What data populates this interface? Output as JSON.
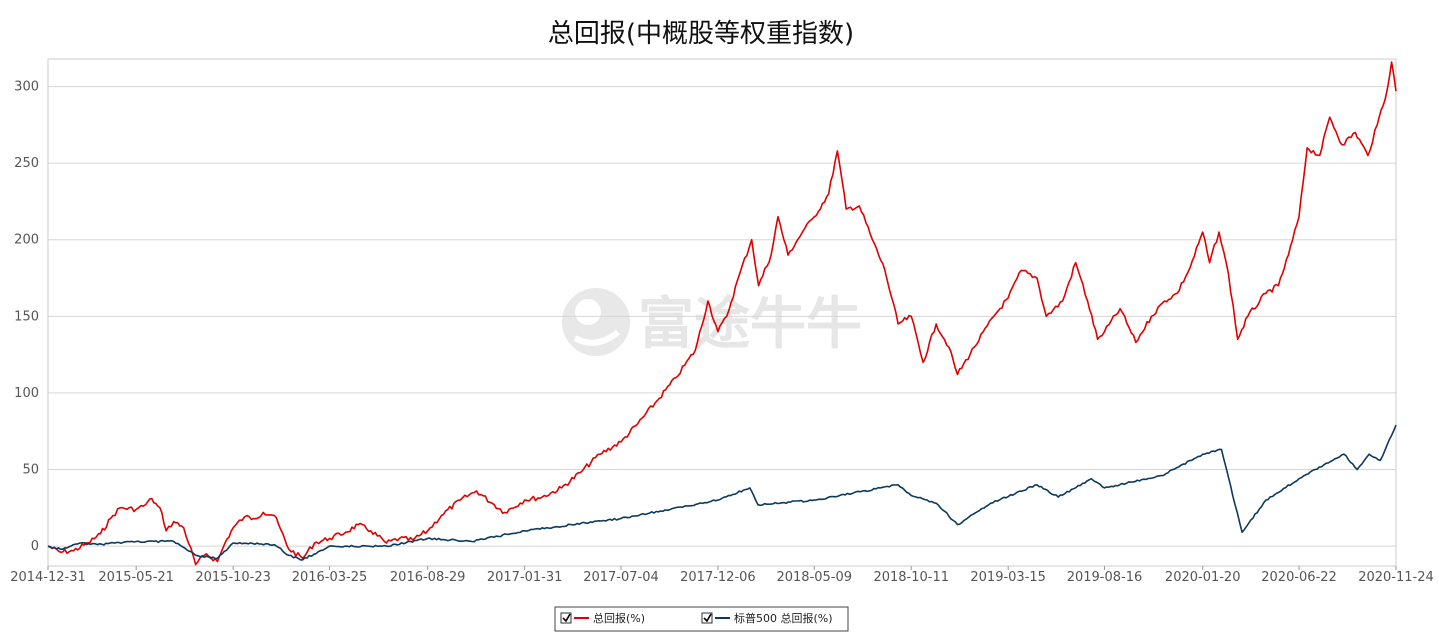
{
  "chart_data": {
    "type": "line",
    "title": "总回报(中概股等权重指数)",
    "xlabel": "",
    "ylabel": "",
    "x": [
      "2014-12-31",
      "2015-05-21",
      "2015-10-23",
      "2016-03-25",
      "2016-08-29",
      "2017-01-31",
      "2017-07-04",
      "2017-12-06",
      "2018-05-09",
      "2018-10-11",
      "2019-03-15",
      "2019-08-16",
      "2020-01-20",
      "2020-06-22",
      "2020-11-24"
    ],
    "x_tick_labels": [
      "2014-12-31",
      "2015-05-21",
      "2015-10-23",
      "2016-03-25",
      "2016-08-29",
      "2017-01-31",
      "2017-07-04",
      "2017-12-06",
      "2018-05-09",
      "2018-10-11",
      "2019-03-15",
      "2019-08-16",
      "2020-01-20",
      "2020-06-22",
      "2020-11-24"
    ],
    "y_ticks": [
      "0",
      "50",
      "100",
      "150",
      "200",
      "250",
      "300"
    ],
    "ylim": [
      -13,
      318
    ],
    "grid": "horizontal",
    "legend_position": "bottom-center",
    "series": [
      {
        "name": "总回报(%)",
        "color": "#e00000",
        "points": [
          [
            "2014-12-31",
            0
          ],
          [
            "2015-01-20",
            -4
          ],
          [
            "2015-02-10",
            -3
          ],
          [
            "2015-03-05",
            2
          ],
          [
            "2015-03-25",
            8
          ],
          [
            "2015-04-10",
            18
          ],
          [
            "2015-04-25",
            25
          ],
          [
            "2015-05-21",
            24
          ],
          [
            "2015-06-05",
            27
          ],
          [
            "2015-06-15",
            31
          ],
          [
            "2015-07-01",
            22
          ],
          [
            "2015-07-08",
            10
          ],
          [
            "2015-07-20",
            16
          ],
          [
            "2015-08-05",
            12
          ],
          [
            "2015-08-24",
            -12
          ],
          [
            "2015-09-10",
            -5
          ],
          [
            "2015-09-28",
            -10
          ],
          [
            "2015-10-10",
            2
          ],
          [
            "2015-10-23",
            12
          ],
          [
            "2015-11-10",
            19
          ],
          [
            "2015-11-25",
            18
          ],
          [
            "2015-12-10",
            22
          ],
          [
            "2015-12-28",
            20
          ],
          [
            "2016-01-20",
            -2
          ],
          [
            "2016-02-11",
            -8
          ],
          [
            "2016-03-01",
            2
          ],
          [
            "2016-03-25",
            5
          ],
          [
            "2016-04-20",
            9
          ],
          [
            "2016-05-10",
            14
          ],
          [
            "2016-05-30",
            10
          ],
          [
            "2016-06-24",
            2
          ],
          [
            "2016-07-15",
            5
          ],
          [
            "2016-08-05",
            4
          ],
          [
            "2016-08-29",
            10
          ],
          [
            "2016-09-20",
            20
          ],
          [
            "2016-10-20",
            30
          ],
          [
            "2016-11-15",
            36
          ],
          [
            "2016-12-10",
            28
          ],
          [
            "2016-12-30",
            22
          ],
          [
            "2017-01-31",
            30
          ],
          [
            "2017-02-28",
            32
          ],
          [
            "2017-03-31",
            38
          ],
          [
            "2017-04-30",
            48
          ],
          [
            "2017-05-31",
            60
          ],
          [
            "2017-07-04",
            68
          ],
          [
            "2017-07-31",
            80
          ],
          [
            "2017-08-31",
            95
          ],
          [
            "2017-09-30",
            110
          ],
          [
            "2017-10-31",
            128
          ],
          [
            "2017-11-20",
            160
          ],
          [
            "2017-12-06",
            140
          ],
          [
            "2017-12-20",
            150
          ],
          [
            "2018-01-10",
            178
          ],
          [
            "2018-01-29",
            200
          ],
          [
            "2018-02-09",
            170
          ],
          [
            "2018-03-01",
            190
          ],
          [
            "2018-03-12",
            215
          ],
          [
            "2018-03-28",
            190
          ],
          [
            "2018-04-20",
            205
          ],
          [
            "2018-05-09",
            215
          ],
          [
            "2018-06-01",
            230
          ],
          [
            "2018-06-15",
            258
          ],
          [
            "2018-06-29",
            220
          ],
          [
            "2018-07-20",
            222
          ],
          [
            "2018-08-10",
            200
          ],
          [
            "2018-08-30",
            180
          ],
          [
            "2018-09-20",
            145
          ],
          [
            "2018-10-11",
            150
          ],
          [
            "2018-10-30",
            120
          ],
          [
            "2018-11-20",
            145
          ],
          [
            "2018-12-10",
            130
          ],
          [
            "2018-12-24",
            112
          ],
          [
            "2019-01-20",
            130
          ],
          [
            "2019-02-20",
            150
          ],
          [
            "2019-03-15",
            162
          ],
          [
            "2019-04-05",
            180
          ],
          [
            "2019-04-30",
            175
          ],
          [
            "2019-05-15",
            150
          ],
          [
            "2019-06-10",
            160
          ],
          [
            "2019-07-01",
            185
          ],
          [
            "2019-07-20",
            160
          ],
          [
            "2019-08-05",
            135
          ],
          [
            "2019-08-16",
            140
          ],
          [
            "2019-09-10",
            155
          ],
          [
            "2019-10-05",
            133
          ],
          [
            "2019-10-30",
            150
          ],
          [
            "2019-11-20",
            160
          ],
          [
            "2019-12-10",
            165
          ],
          [
            "2019-12-31",
            182
          ],
          [
            "2020-01-20",
            205
          ],
          [
            "2020-01-31",
            185
          ],
          [
            "2020-02-15",
            205
          ],
          [
            "2020-03-01",
            178
          ],
          [
            "2020-03-16",
            135
          ],
          [
            "2020-04-01",
            150
          ],
          [
            "2020-04-30",
            165
          ],
          [
            "2020-05-20",
            170
          ],
          [
            "2020-06-05",
            190
          ],
          [
            "2020-06-22",
            215
          ],
          [
            "2020-07-05",
            260
          ],
          [
            "2020-07-25",
            255
          ],
          [
            "2020-08-10",
            280
          ],
          [
            "2020-08-30",
            262
          ],
          [
            "2020-09-20",
            270
          ],
          [
            "2020-10-10",
            255
          ],
          [
            "2020-10-25",
            275
          ],
          [
            "2020-11-10",
            298
          ],
          [
            "2020-11-17",
            316
          ],
          [
            "2020-11-24",
            297
          ]
        ]
      },
      {
        "name": "标普500 总回报(%)",
        "color": "#0d3a5c",
        "points": [
          [
            "2014-12-31",
            0
          ],
          [
            "2015-01-20",
            -2
          ],
          [
            "2015-02-20",
            2
          ],
          [
            "2015-03-20",
            1
          ],
          [
            "2015-05-21",
            3
          ],
          [
            "2015-07-20",
            3
          ],
          [
            "2015-08-24",
            -6
          ],
          [
            "2015-09-28",
            -8
          ],
          [
            "2015-10-23",
            2
          ],
          [
            "2015-12-28",
            1
          ],
          [
            "2016-01-20",
            -6
          ],
          [
            "2016-02-11",
            -9
          ],
          [
            "2016-03-25",
            0
          ],
          [
            "2016-06-24",
            0
          ],
          [
            "2016-08-29",
            5
          ],
          [
            "2016-11-08",
            3
          ],
          [
            "2017-01-31",
            10
          ],
          [
            "2017-07-04",
            18
          ],
          [
            "2017-12-06",
            30
          ],
          [
            "2018-01-26",
            38
          ],
          [
            "2018-02-08",
            27
          ],
          [
            "2018-05-09",
            30
          ],
          [
            "2018-09-20",
            40
          ],
          [
            "2018-10-11",
            33
          ],
          [
            "2018-11-20",
            28
          ],
          [
            "2018-12-24",
            14
          ],
          [
            "2019-02-15",
            28
          ],
          [
            "2019-04-30",
            40
          ],
          [
            "2019-06-03",
            32
          ],
          [
            "2019-07-26",
            44
          ],
          [
            "2019-08-16",
            38
          ],
          [
            "2019-11-15",
            46
          ],
          [
            "2020-01-20",
            60
          ],
          [
            "2020-02-19",
            63
          ],
          [
            "2020-03-23",
            9
          ],
          [
            "2020-04-30",
            30
          ],
          [
            "2020-06-22",
            44
          ],
          [
            "2020-09-02",
            60
          ],
          [
            "2020-09-23",
            50
          ],
          [
            "2020-10-12",
            60
          ],
          [
            "2020-10-30",
            56
          ],
          [
            "2020-11-24",
            79
          ]
        ]
      }
    ]
  },
  "legend": {
    "items": [
      {
        "label": "总回报(%)",
        "checked": true,
        "color": "#e00000"
      },
      {
        "label": "标普500 总回报(%)",
        "checked": true,
        "color": "#0d3a5c"
      }
    ]
  },
  "watermark": {
    "text": "富途牛牛",
    "icon": "futu-logo-icon"
  }
}
